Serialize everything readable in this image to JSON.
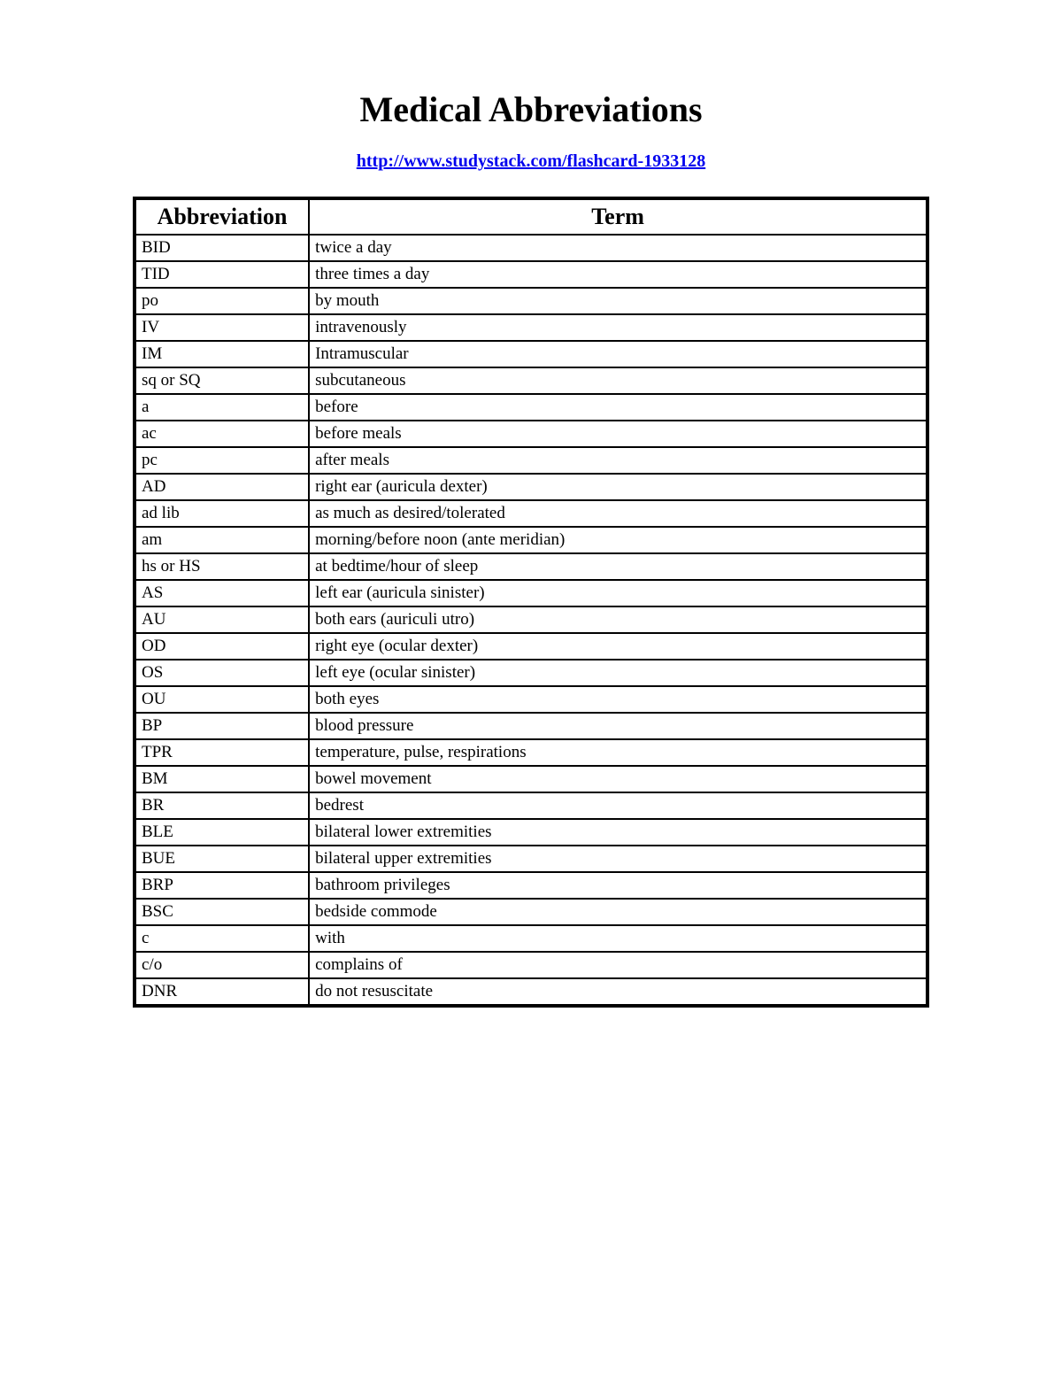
{
  "title": "Medical Abbreviations",
  "source_link": "http://www.studystack.com/flashcard-1933128",
  "table": {
    "columns": [
      "Abbreviation",
      "Term"
    ],
    "column_widths_percent": [
      22,
      78
    ],
    "header_fontsize": 26,
    "cell_fontsize": 19,
    "border_color": "#000000",
    "outer_border_width": 4,
    "inner_border_width": 2,
    "background_color": "#ffffff",
    "rows": [
      [
        "BID",
        "twice a day"
      ],
      [
        "TID",
        "three times a day"
      ],
      [
        "po",
        "by mouth"
      ],
      [
        "IV",
        "intravenously"
      ],
      [
        "IM",
        "Intramuscular"
      ],
      [
        "sq or SQ",
        "subcutaneous"
      ],
      [
        "a",
        "before"
      ],
      [
        "ac",
        "before meals"
      ],
      [
        "pc",
        "after meals"
      ],
      [
        "AD",
        "right ear (auricula dexter)"
      ],
      [
        "ad lib",
        "as much as desired/tolerated"
      ],
      [
        "am",
        "morning/before noon (ante meridian)"
      ],
      [
        "hs or HS",
        "at bedtime/hour of sleep"
      ],
      [
        "AS",
        "left ear (auricula sinister)"
      ],
      [
        "AU",
        "both ears (auriculi utro)"
      ],
      [
        "OD",
        "right eye (ocular dexter)"
      ],
      [
        "OS",
        "left eye (ocular sinister)"
      ],
      [
        "OU",
        "both eyes"
      ],
      [
        "BP",
        "blood pressure"
      ],
      [
        "TPR",
        "temperature, pulse, respirations"
      ],
      [
        "BM",
        "bowel movement"
      ],
      [
        "BR",
        "bedrest"
      ],
      [
        "BLE",
        "bilateral lower extremities"
      ],
      [
        "BUE",
        "bilateral upper extremities"
      ],
      [
        "BRP",
        "bathroom privileges"
      ],
      [
        "BSC",
        "bedside commode"
      ],
      [
        "c",
        "with"
      ],
      [
        "c/o",
        "complains of"
      ],
      [
        "DNR",
        "do not resuscitate"
      ]
    ]
  },
  "colors": {
    "title_color": "#000000",
    "link_color": "#0000ee",
    "text_color": "#000000",
    "background": "#ffffff"
  },
  "typography": {
    "title_fontsize": 40,
    "link_fontsize": 20,
    "font_family": "Times New Roman"
  }
}
